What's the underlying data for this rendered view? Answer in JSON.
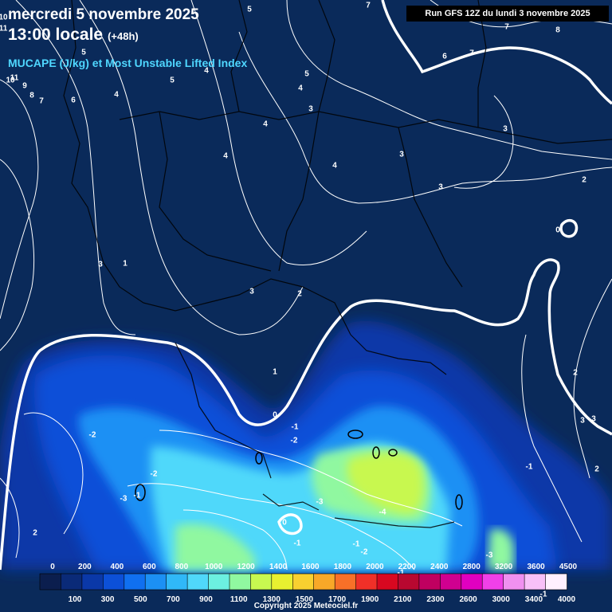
{
  "header": {
    "date_line": "mercredi 5 novembre 2025",
    "time_line": "13:00 locale",
    "offset": "(+48h)",
    "parameter": "MUCAPE (J/kg) et Most Unstable Lifted Index",
    "run": "Run GFS 12Z du lundi 3 novembre 2025"
  },
  "footer": {
    "copyright": "Copyright 2025 Meteociel.fr"
  },
  "legend": {
    "top_labels": [
      "0",
      "200",
      "400",
      "600",
      "800",
      "1000",
      "1200",
      "1400",
      "1600",
      "1800",
      "2000",
      "2200",
      "2400",
      "2800",
      "3200",
      "3600",
      "4500"
    ],
    "bottom_labels": [
      "100",
      "300",
      "500",
      "700",
      "900",
      "1100",
      "1300",
      "1500",
      "1700",
      "1900",
      "2100",
      "2300",
      "2600",
      "3000",
      "3400",
      "4000"
    ],
    "colors": [
      "#0b1e4e",
      "#0a2a78",
      "#0a38a8",
      "#0c50d8",
      "#1070f0",
      "#1c90f4",
      "#30b8f8",
      "#50d8fa",
      "#6cf0e0",
      "#90f8a0",
      "#c8f850",
      "#e8f030",
      "#f8d030",
      "#f8a828",
      "#f87028",
      "#f03028",
      "#d80820",
      "#b80830",
      "#c00060",
      "#d00090",
      "#e000c0",
      "#f040e8",
      "#f090f0",
      "#f8c0f8",
      "#fff0ff"
    ],
    "unit": "J/kg"
  },
  "map": {
    "style": {
      "background": "#0a2a5a",
      "zero_line": "#ffffff",
      "isoline": "#ffffff",
      "border": "#000000"
    },
    "lifted_index_labels": [
      {
        "text": "10"
      },
      {
        "text": "11"
      },
      {
        "text": "5"
      },
      {
        "text": "7"
      },
      {
        "text": "7"
      },
      {
        "text": "8"
      },
      {
        "text": "5"
      },
      {
        "text": "11"
      },
      {
        "text": "10"
      },
      {
        "text": "9"
      },
      {
        "text": "8"
      },
      {
        "text": "7"
      },
      {
        "text": "6"
      },
      {
        "text": "4"
      },
      {
        "text": "4"
      },
      {
        "text": "5"
      },
      {
        "text": "5"
      },
      {
        "text": "4"
      },
      {
        "text": "6"
      },
      {
        "text": "7"
      },
      {
        "text": "3"
      },
      {
        "text": "4"
      },
      {
        "text": "4"
      },
      {
        "text": "3"
      },
      {
        "text": "4"
      },
      {
        "text": "3"
      },
      {
        "text": "3"
      },
      {
        "text": "2"
      },
      {
        "text": "0"
      },
      {
        "text": "3"
      },
      {
        "text": "1"
      },
      {
        "text": "3"
      },
      {
        "text": "2"
      },
      {
        "text": "1"
      },
      {
        "text": "0"
      },
      {
        "text": "-1"
      },
      {
        "text": "-2"
      },
      {
        "text": "-2"
      },
      {
        "text": "-2"
      },
      {
        "text": "-3"
      },
      {
        "text": "-1"
      },
      {
        "text": "-3"
      },
      {
        "text": "-4"
      },
      {
        "text": "0"
      },
      {
        "text": "-1"
      },
      {
        "text": "-1"
      },
      {
        "text": "-2"
      },
      {
        "text": "-3"
      },
      {
        "text": "-1"
      },
      {
        "text": "-1"
      },
      {
        "text": "2"
      },
      {
        "text": "3"
      },
      {
        "text": "3"
      },
      {
        "text": "2"
      },
      {
        "text": "-1"
      },
      {
        "text": "2"
      }
    ]
  }
}
